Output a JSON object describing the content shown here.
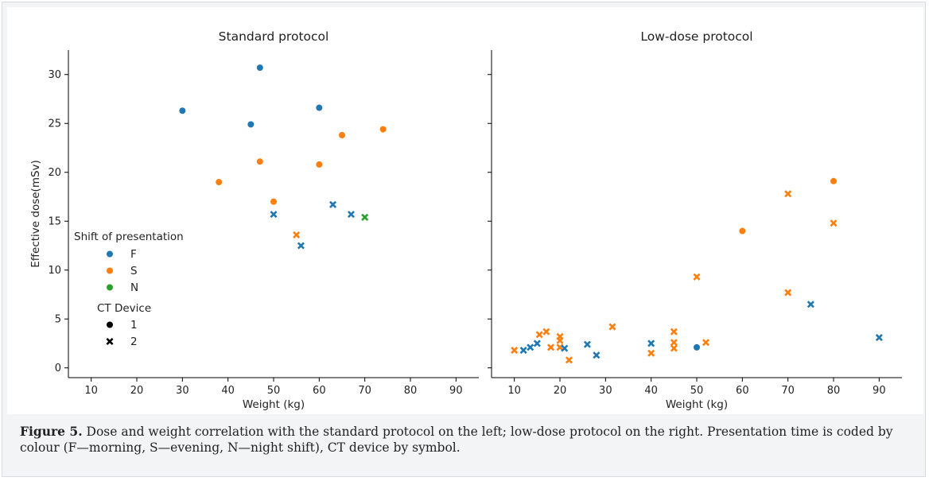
{
  "chart_data": {
    "type": "scatter",
    "ylabel": "Effective dose(mSv)",
    "xlabel": "Weight (kg)",
    "xlim": [
      5,
      95
    ],
    "ylim": [
      -1,
      32.5
    ],
    "x_ticks": [
      10,
      20,
      30,
      40,
      50,
      60,
      70,
      80,
      90
    ],
    "y_ticks": [
      0,
      5,
      10,
      15,
      20,
      25,
      30
    ],
    "colors": {
      "F": "#1f77b4",
      "S": "#ff7f0e",
      "N": "#2ca02c"
    },
    "legend": {
      "placement": "left, middle of first panel",
      "shift_title": "Shift of presentation",
      "shift_items": [
        "F",
        "S",
        "N"
      ],
      "device_title": "CT Device",
      "device_items": [
        {
          "label": "1",
          "marker": "circle"
        },
        {
          "label": "2",
          "marker": "x"
        }
      ]
    },
    "panels": [
      {
        "title": "Standard protocol",
        "points": [
          {
            "x": 30,
            "y": 26.3,
            "shift": "F",
            "device": "1"
          },
          {
            "x": 45,
            "y": 24.9,
            "shift": "F",
            "device": "1"
          },
          {
            "x": 47,
            "y": 30.7,
            "shift": "F",
            "device": "1"
          },
          {
            "x": 60,
            "y": 26.6,
            "shift": "F",
            "device": "1"
          },
          {
            "x": 38,
            "y": 19.0,
            "shift": "S",
            "device": "1"
          },
          {
            "x": 47,
            "y": 21.1,
            "shift": "S",
            "device": "1"
          },
          {
            "x": 50,
            "y": 17.0,
            "shift": "S",
            "device": "1"
          },
          {
            "x": 60,
            "y": 20.8,
            "shift": "S",
            "device": "1"
          },
          {
            "x": 65,
            "y": 23.8,
            "shift": "S",
            "device": "1"
          },
          {
            "x": 74,
            "y": 24.4,
            "shift": "S",
            "device": "1"
          },
          {
            "x": 50,
            "y": 15.7,
            "shift": "F",
            "device": "2"
          },
          {
            "x": 56,
            "y": 12.5,
            "shift": "F",
            "device": "2"
          },
          {
            "x": 63,
            "y": 16.7,
            "shift": "F",
            "device": "2"
          },
          {
            "x": 67,
            "y": 15.7,
            "shift": "F",
            "device": "2"
          },
          {
            "x": 55,
            "y": 13.6,
            "shift": "S",
            "device": "2"
          },
          {
            "x": 70,
            "y": 15.4,
            "shift": "N",
            "device": "2"
          }
        ]
      },
      {
        "title": "Low-dose protocol",
        "points": [
          {
            "x": 80,
            "y": 19.1,
            "shift": "S",
            "device": "1"
          },
          {
            "x": 60,
            "y": 14.0,
            "shift": "S",
            "device": "1"
          },
          {
            "x": 50,
            "y": 2.1,
            "shift": "F",
            "device": "1"
          },
          {
            "x": 70,
            "y": 17.8,
            "shift": "S",
            "device": "2"
          },
          {
            "x": 80,
            "y": 14.8,
            "shift": "S",
            "device": "2"
          },
          {
            "x": 50,
            "y": 9.3,
            "shift": "S",
            "device": "2"
          },
          {
            "x": 70,
            "y": 7.7,
            "shift": "S",
            "device": "2"
          },
          {
            "x": 75,
            "y": 6.5,
            "shift": "F",
            "device": "2"
          },
          {
            "x": 90,
            "y": 3.1,
            "shift": "F",
            "device": "2"
          },
          {
            "x": 10,
            "y": 1.8,
            "shift": "S",
            "device": "2"
          },
          {
            "x": 12,
            "y": 1.8,
            "shift": "F",
            "device": "2"
          },
          {
            "x": 13.5,
            "y": 2.1,
            "shift": "F",
            "device": "2"
          },
          {
            "x": 15,
            "y": 2.5,
            "shift": "F",
            "device": "2"
          },
          {
            "x": 15.5,
            "y": 3.4,
            "shift": "S",
            "device": "2"
          },
          {
            "x": 17,
            "y": 3.7,
            "shift": "S",
            "device": "2"
          },
          {
            "x": 18,
            "y": 2.1,
            "shift": "S",
            "device": "2"
          },
          {
            "x": 20,
            "y": 3.2,
            "shift": "S",
            "device": "2"
          },
          {
            "x": 20,
            "y": 2.8,
            "shift": "S",
            "device": "2"
          },
          {
            "x": 20,
            "y": 2.1,
            "shift": "S",
            "device": "2"
          },
          {
            "x": 21,
            "y": 2.0,
            "shift": "F",
            "device": "2"
          },
          {
            "x": 22,
            "y": 0.8,
            "shift": "S",
            "device": "2"
          },
          {
            "x": 26,
            "y": 2.4,
            "shift": "F",
            "device": "2"
          },
          {
            "x": 28,
            "y": 1.3,
            "shift": "F",
            "device": "2"
          },
          {
            "x": 31.5,
            "y": 4.2,
            "shift": "S",
            "device": "2"
          },
          {
            "x": 40,
            "y": 2.5,
            "shift": "F",
            "device": "2"
          },
          {
            "x": 40,
            "y": 1.5,
            "shift": "S",
            "device": "2"
          },
          {
            "x": 45,
            "y": 3.7,
            "shift": "S",
            "device": "2"
          },
          {
            "x": 45,
            "y": 2.6,
            "shift": "S",
            "device": "2"
          },
          {
            "x": 45,
            "y": 2.0,
            "shift": "S",
            "device": "2"
          },
          {
            "x": 52,
            "y": 2.6,
            "shift": "S",
            "device": "2"
          }
        ]
      }
    ]
  },
  "caption": {
    "label": "Figure 5.",
    "text": " Dose and weight correlation with the standard protocol on the left; low-dose protocol on the right. Presentation time is coded by colour (F—morning, S—evening, N—night shift), CT device by symbol."
  }
}
